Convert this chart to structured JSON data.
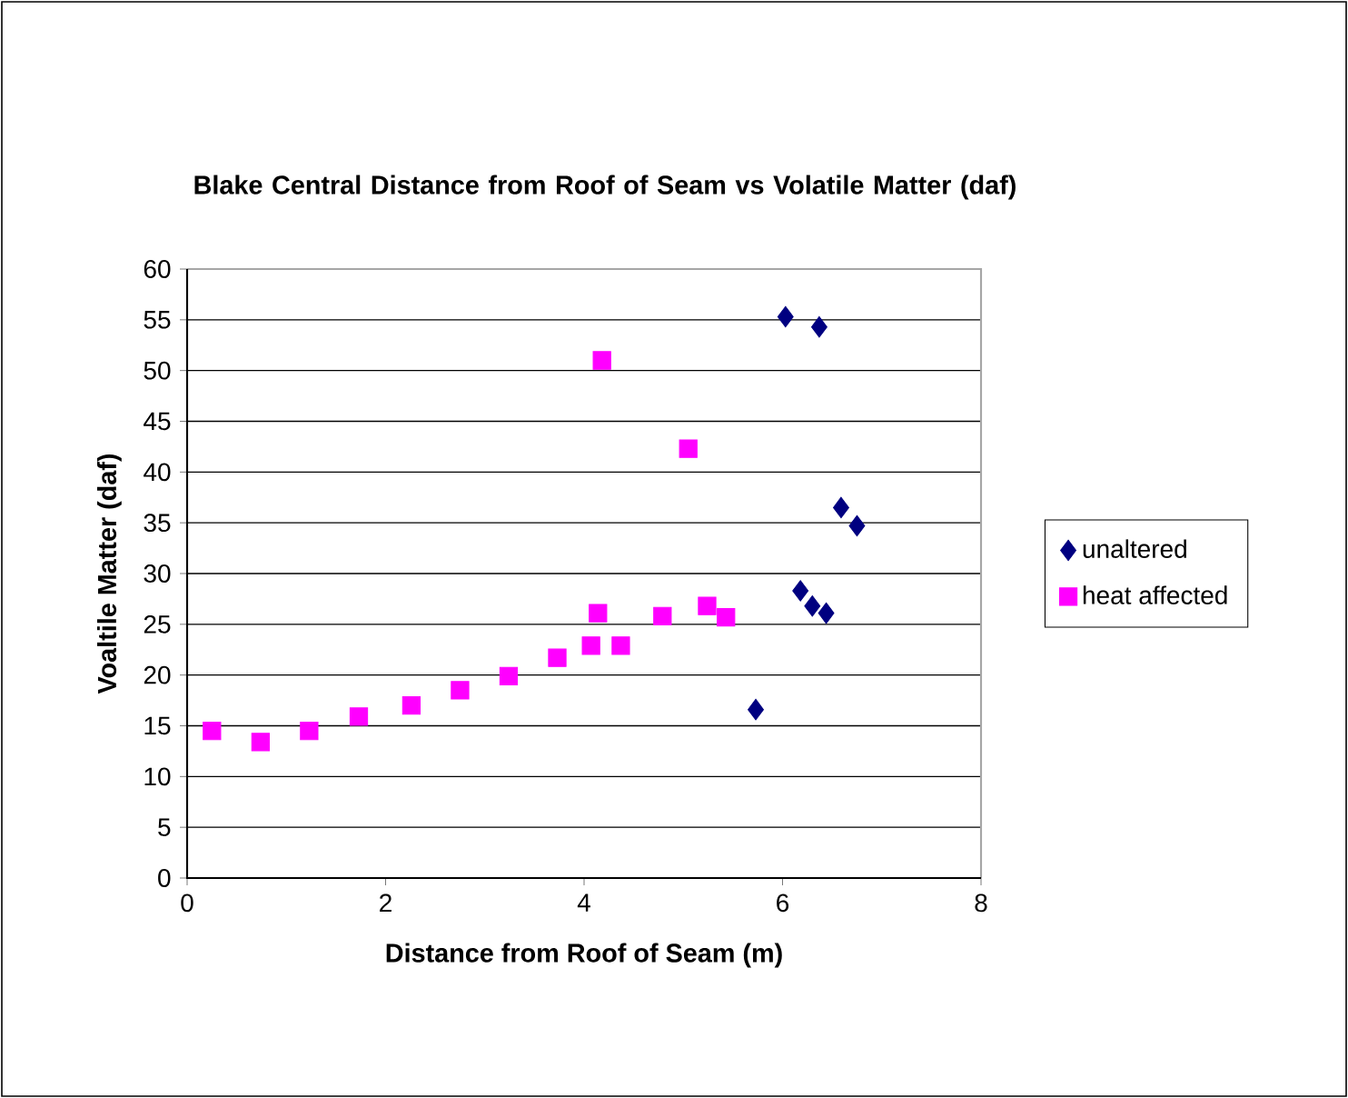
{
  "chart_data": {
    "type": "scatter",
    "title": "Blake Central Distance from Roof of Seam vs Volatile Matter (daf)",
    "xlabel": "Distance from Roof of Seam (m)",
    "ylabel": "Voaltile Matter (daf)",
    "xlim": [
      0,
      8
    ],
    "xticks": [
      0,
      2,
      4,
      6,
      8
    ],
    "ylim": [
      0,
      60
    ],
    "yticks": [
      0,
      5,
      10,
      15,
      20,
      25,
      30,
      35,
      40,
      45,
      50,
      55,
      60
    ],
    "grid": "y",
    "legend": "right",
    "series": [
      {
        "name": "unaltered",
        "color": "#000080",
        "marker": "diamond",
        "x": [
          5.73,
          6.03,
          6.37,
          6.18,
          6.3,
          6.44,
          6.59,
          6.75
        ],
        "values": [
          16.6,
          55.3,
          54.3,
          28.3,
          26.8,
          26.1,
          36.5,
          34.7
        ]
      },
      {
        "name": "heat affected",
        "color": "#ff00ff",
        "marker": "square",
        "x": [
          0.25,
          0.74,
          1.23,
          1.73,
          2.26,
          2.75,
          3.24,
          3.73,
          4.07,
          4.14,
          4.18,
          4.37,
          4.79,
          5.05,
          5.24,
          5.43
        ],
        "values": [
          14.5,
          13.4,
          14.5,
          15.9,
          17.0,
          18.5,
          19.9,
          21.7,
          22.9,
          26.1,
          51.0,
          22.9,
          25.8,
          42.3,
          26.8,
          25.7
        ]
      }
    ]
  }
}
